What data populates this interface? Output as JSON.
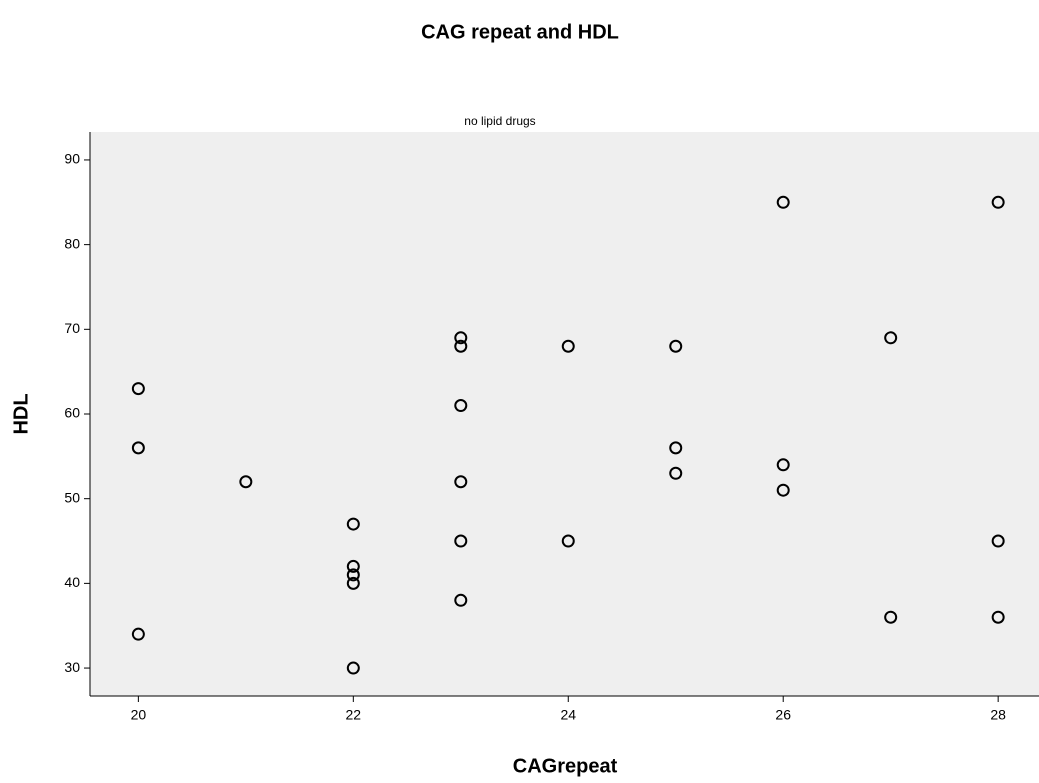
{
  "chart_data": {
    "type": "scatter",
    "title": "CAG repeat and HDL",
    "subtitle": "no lipid drugs",
    "x_label": "CAGrepeat",
    "y_label": "HDL",
    "x": [
      20,
      20,
      20,
      21,
      22,
      22,
      22,
      22,
      22,
      23,
      23,
      23,
      23,
      23,
      23,
      24,
      24,
      25,
      25,
      25,
      26,
      26,
      26,
      27,
      27,
      28,
      28,
      28
    ],
    "values": [
      63,
      56,
      34,
      52,
      47,
      42,
      41,
      40,
      30,
      69,
      68,
      61,
      52,
      45,
      38,
      68,
      45,
      68,
      56,
      53,
      85,
      54,
      51,
      69,
      36,
      85,
      45,
      36
    ],
    "color": "#000000",
    "plot_background": "#efefef",
    "xlim": [
      19.55,
      28.38
    ],
    "xticks": [
      20,
      22,
      24,
      26,
      28
    ],
    "ylim": [
      26.7,
      93.3
    ],
    "yticks": [
      30,
      40,
      50,
      60,
      70,
      80,
      90
    ]
  }
}
